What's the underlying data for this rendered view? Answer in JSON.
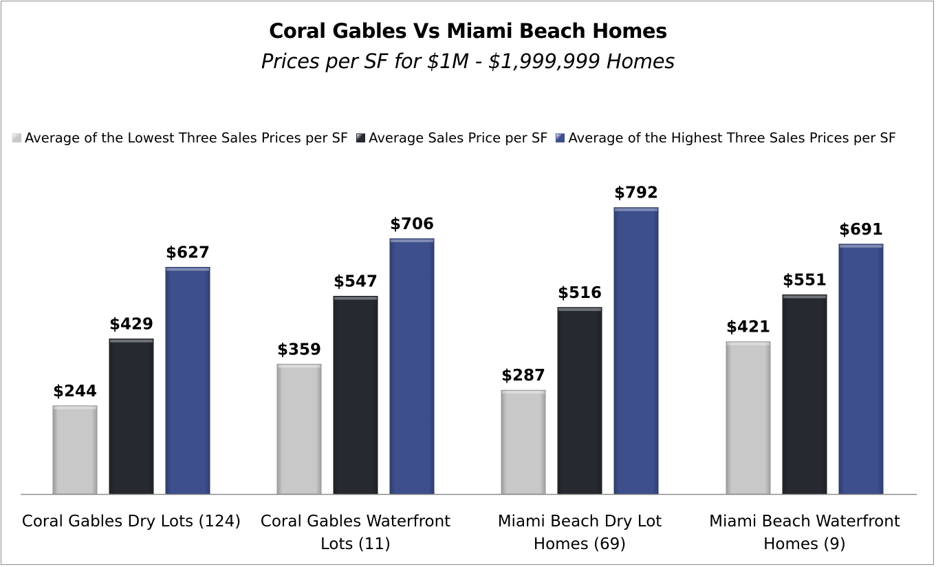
{
  "chart_data": {
    "type": "bar",
    "title": "Coral Gables Vs Miami Beach Homes",
    "subtitle": "Prices per SF for $1M - $1,999,999 Homes",
    "categories": [
      "Coral Gables Dry Lots (124)",
      "Coral Gables Waterfront Lots (11)",
      "Miami Beach Dry Lot Homes (69)",
      "Miami Beach Waterfront Homes (9)"
    ],
    "series": [
      {
        "name": "Average of the Lowest Three Sales Prices per SF",
        "values": [
          244,
          359,
          287,
          421
        ],
        "labels": [
          "$244",
          "$359",
          "$287",
          "$421"
        ],
        "color": "#c8c8c8"
      },
      {
        "name": "Average Sales Price per SF",
        "values": [
          429,
          547,
          516,
          551
        ],
        "labels": [
          "$429",
          "$547",
          "$516",
          "$551"
        ],
        "color": "#262a30"
      },
      {
        "name": "Average of the Highest Three Sales Prices per SF",
        "values": [
          627,
          706,
          792,
          691
        ],
        "labels": [
          "$627",
          "$706",
          "$792",
          "$691"
        ],
        "color": "#3d4f8c"
      }
    ],
    "ylim": [
      0,
      1000
    ],
    "grid": false,
    "legend_position": "top"
  }
}
